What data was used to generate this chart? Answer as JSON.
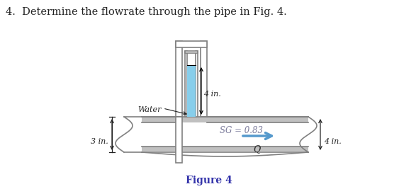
{
  "title_text": "4.  Determine the flowrate through the pipe in Fig. 4.",
  "figure_label": "Figure 4",
  "sg_label": "SG = 0.83",
  "water_label": "Water",
  "dim_left": "3 in.",
  "dim_right": "4 in.",
  "dim_top": "4 in.",
  "flow_label": "Q",
  "bg_color": "#ffffff",
  "pipe_color": "#c0c0c0",
  "pipe_edge": "#808080",
  "water_fill": "#87ceeb",
  "arrow_color": "#5599cc",
  "text_color": "#222222",
  "sg_text_color": "#7a7a9a"
}
